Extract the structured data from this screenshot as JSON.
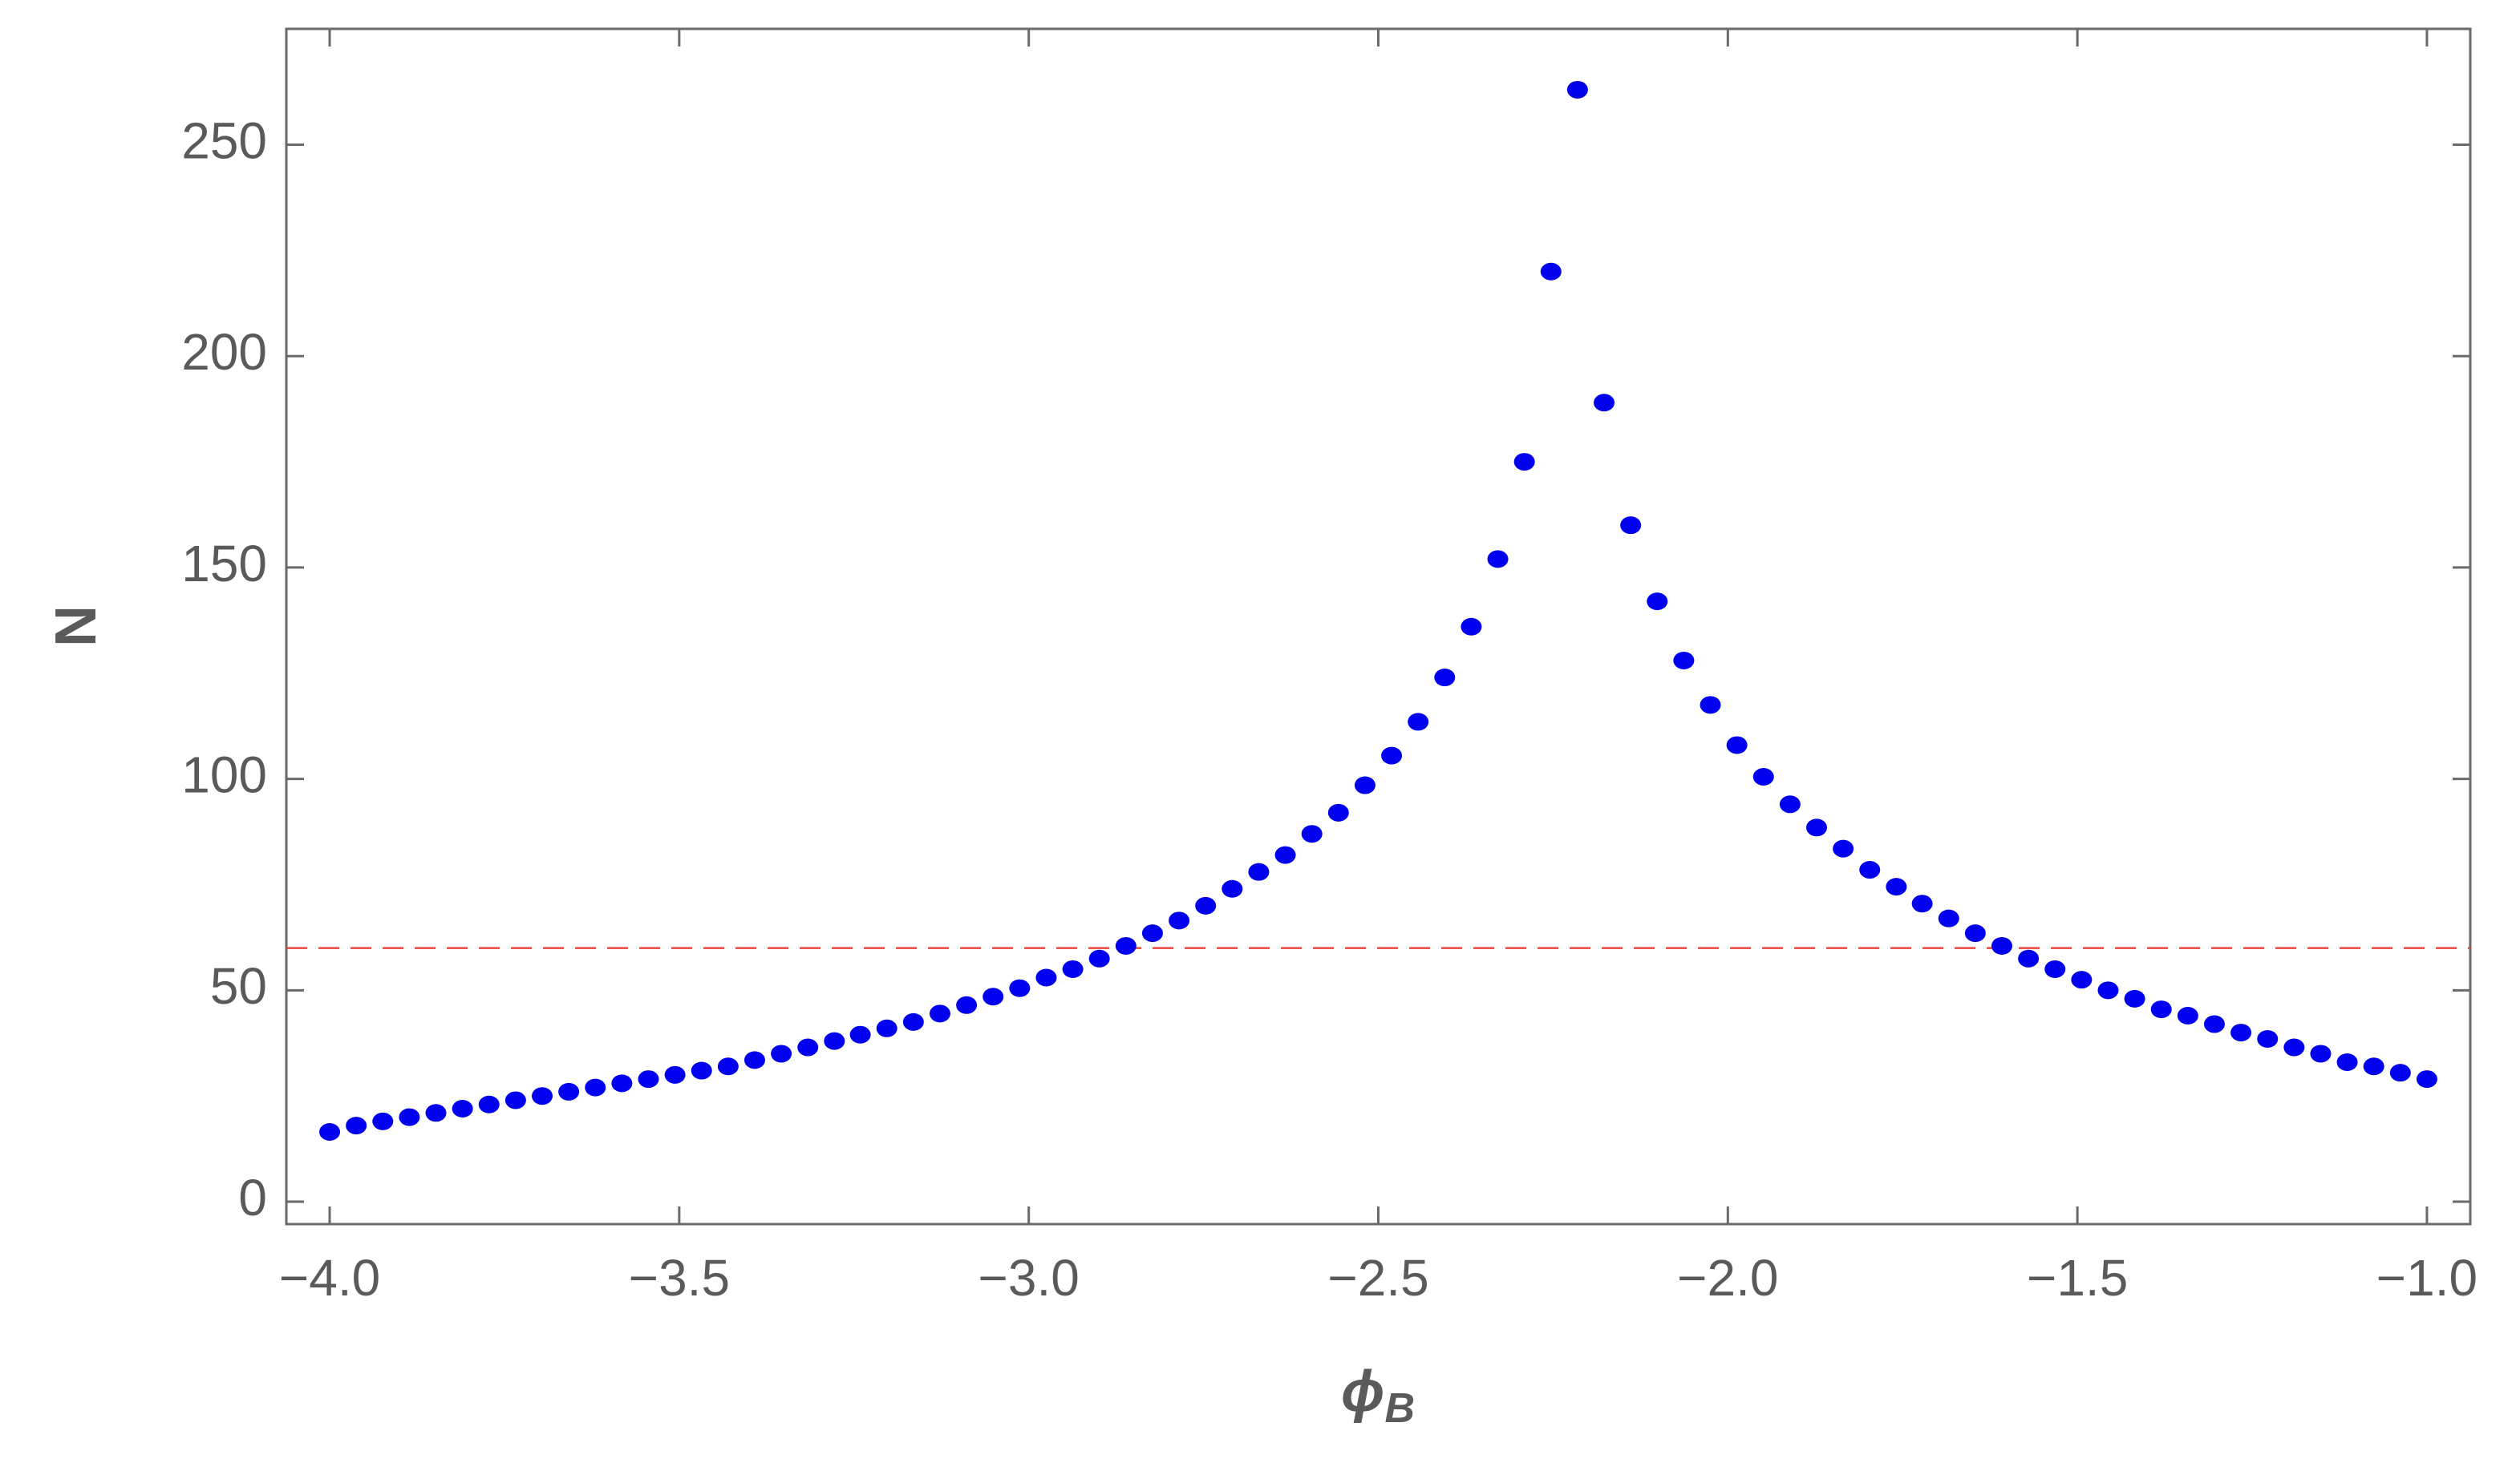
{
  "chart_data": {
    "type": "scatter",
    "xlabel": "ϕ",
    "xlabel_subscript": "B",
    "ylabel": "N",
    "x": [
      -4.0,
      -3.962,
      -3.924,
      -3.886,
      -3.848,
      -3.81,
      -3.772,
      -3.734,
      -3.696,
      -3.658,
      -3.62,
      -3.582,
      -3.544,
      -3.506,
      -3.468,
      -3.43,
      -3.392,
      -3.354,
      -3.316,
      -3.278,
      -3.241,
      -3.203,
      -3.165,
      -3.127,
      -3.089,
      -3.051,
      -3.013,
      -2.975,
      -2.937,
      -2.899,
      -2.861,
      -2.823,
      -2.785,
      -2.747,
      -2.709,
      -2.671,
      -2.633,
      -2.595,
      -2.557,
      -2.519,
      -2.481,
      -2.443,
      -2.405,
      -2.367,
      -2.329,
      -2.291,
      -2.253,
      -2.215,
      -2.177,
      -2.139,
      -2.101,
      -2.063,
      -2.025,
      -1.987,
      -1.949,
      -1.911,
      -1.873,
      -1.835,
      -1.797,
      -1.759,
      -1.722,
      -1.684,
      -1.646,
      -1.608,
      -1.57,
      -1.532,
      -1.494,
      -1.456,
      -1.418,
      -1.38,
      -1.342,
      -1.304,
      -1.266,
      -1.228,
      -1.19,
      -1.152,
      -1.114,
      -1.076,
      -1.038,
      -1.0
    ],
    "series": [
      {
        "name": "N",
        "color": "#0000ee",
        "values": [
          16.5,
          18,
          19,
          20,
          21,
          22,
          23,
          24,
          25,
          26,
          27,
          28,
          29,
          30,
          31,
          32,
          33.5,
          35,
          36.5,
          38,
          39.5,
          41,
          42.5,
          44.5,
          46.5,
          48.5,
          50.5,
          53,
          55,
          57.5,
          60.5,
          63.5,
          66.5,
          70,
          74,
          78,
          82,
          87,
          92,
          98.5,
          105.5,
          113.5,
          124,
          136,
          152,
          175,
          220,
          263,
          189,
          160,
          142,
          128,
          117.5,
          108,
          100.5,
          94,
          88.5,
          83.5,
          78.5,
          74.5,
          70.5,
          67,
          63.5,
          60.5,
          57.5,
          55,
          52.5,
          50,
          48,
          45.5,
          44,
          42,
          40,
          38.5,
          36.5,
          35,
          33,
          32,
          30.5,
          29
        ]
      }
    ],
    "hline": {
      "value": 60,
      "color": "#e8473f",
      "dashed": true
    },
    "xlim": [
      -4.062,
      -0.938
    ],
    "ylim": [
      -5.3,
      277.4
    ],
    "xticks": [
      {
        "value": -4.0,
        "label": "−4.0"
      },
      {
        "value": -3.5,
        "label": "−3.5"
      },
      {
        "value": -3.0,
        "label": "−3.0"
      },
      {
        "value": -2.5,
        "label": "−2.5"
      },
      {
        "value": -2.0,
        "label": "−2.0"
      },
      {
        "value": -1.5,
        "label": "−1.5"
      },
      {
        "value": -1.0,
        "label": "−1.0"
      }
    ],
    "yticks": [
      0,
      50,
      100,
      150,
      200,
      250
    ],
    "grid": false
  }
}
